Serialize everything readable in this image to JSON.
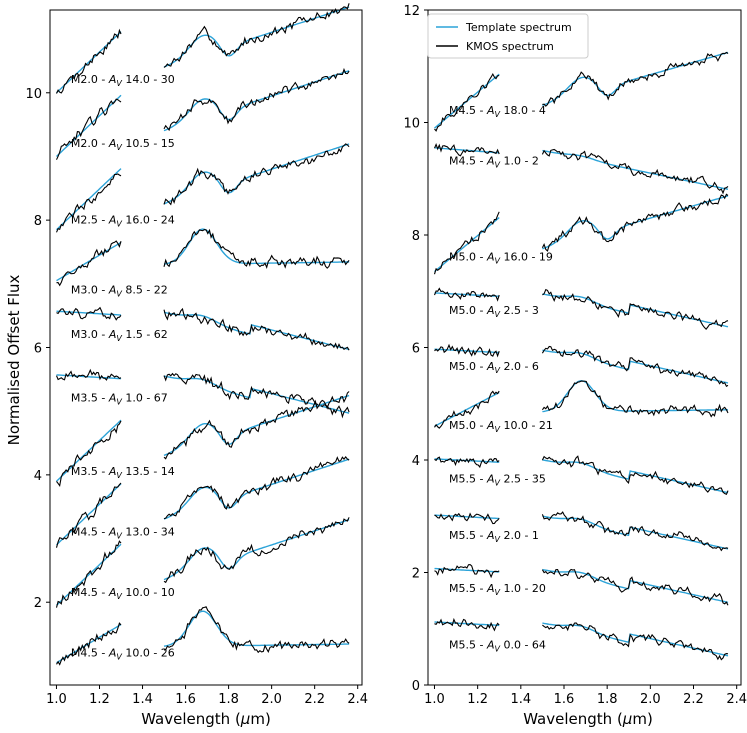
{
  "chart_data": [
    {
      "type": "line",
      "panel": "left",
      "xlabel": "Wavelength (μm)",
      "ylabel": "Normalised Offset Flux",
      "xlim": [
        0.97,
        2.42
      ],
      "ylim": [
        0.7,
        11.3
      ],
      "xticks": [
        "1.0",
        "1.2",
        "1.4",
        "1.6",
        "1.8",
        "2.0",
        "2.2",
        "2.4"
      ],
      "xtick_values": [
        1.0,
        1.2,
        1.4,
        1.6,
        1.8,
        2.0,
        2.2,
        2.4
      ],
      "yticks": [
        "2",
        "4",
        "6",
        "8",
        "10"
      ],
      "ytick_values": [
        2,
        4,
        6,
        8,
        10
      ],
      "series_colors": {
        "template": "#2ca3d8",
        "kmos": "#000000"
      },
      "spectra": [
        {
          "label": "M2.0 - A_V 14.0 - 30",
          "spt": "M2.0 - ",
          "av": "14.0 - 30",
          "base": 10.0,
          "shape": "red",
          "label_x": 1.16,
          "label_y": 10.15
        },
        {
          "label": "M2.0 - A_V 10.5 - 15",
          "spt": "M2.0 - ",
          "av": "10.5 - 15",
          "base": 9.0,
          "shape": "red",
          "label_x": 1.16,
          "label_y": 9.15
        },
        {
          "label": "M2.5 - A_V 16.0 - 24",
          "spt": "M2.5 - ",
          "av": "16.0 - 24",
          "base": 7.85,
          "shape": "red",
          "label_x": 1.16,
          "label_y": 7.95
        },
        {
          "label": "M3.0 - A_V 8.5 - 22",
          "spt": "M3.0 - ",
          "av": "8.5 - 22",
          "base": 7.05,
          "shape": "mid",
          "label_x": 1.16,
          "label_y": 6.85
        },
        {
          "label": "M3.0 - A_V 1.5 - 62",
          "spt": "M3.0 - ",
          "av": "1.5 - 62",
          "base": 6.55,
          "shape": "blue",
          "label_x": 1.16,
          "label_y": 6.15
        },
        {
          "label": "M3.5 - A_V 1.0 - 67",
          "spt": "M3.5 - ",
          "av": "1.0 - 67",
          "base": 5.55,
          "shape": "blue",
          "label_x": 1.16,
          "label_y": 5.15
        },
        {
          "label": "M3.5 - A_V 13.5 - 14",
          "spt": "M3.5 - ",
          "av": "13.5 - 14",
          "base": 3.9,
          "shape": "red",
          "label_x": 1.16,
          "label_y": 4.0
        },
        {
          "label": "M4.5 - A_V 13.0 - 34",
          "spt": "M4.5 - ",
          "av": "13.0 - 34",
          "base": 2.9,
          "shape": "red",
          "label_x": 1.16,
          "label_y": 3.05
        },
        {
          "label": "M4.5 - A_V 10.0 - 10",
          "spt": "M4.5 - ",
          "av": "10.0 - 10",
          "base": 1.95,
          "shape": "red",
          "label_x": 1.16,
          "label_y": 2.1
        },
        {
          "label": "M4.5 - A_V 10.0 - 26",
          "spt": "M4.5 - ",
          "av": "10.0 - 26",
          "base": 1.05,
          "shape": "mid",
          "label_x": 1.16,
          "label_y": 1.15
        }
      ]
    },
    {
      "type": "line",
      "panel": "right",
      "xlabel": "Wavelength (μm)",
      "ylabel": "",
      "xlim": [
        0.97,
        2.42
      ],
      "ylim": [
        0,
        12
      ],
      "xticks": [
        "1.0",
        "1.2",
        "1.4",
        "1.6",
        "1.8",
        "2.0",
        "2.2",
        "2.4"
      ],
      "xtick_values": [
        1.0,
        1.2,
        1.4,
        1.6,
        1.8,
        2.0,
        2.2,
        2.4
      ],
      "yticks": [
        "0",
        "2",
        "4",
        "6",
        "8",
        "10",
        "12"
      ],
      "ytick_values": [
        0,
        2,
        4,
        6,
        8,
        10,
        12
      ],
      "legend": {
        "position": "top-left",
        "template": "Template spectrum",
        "kmos": "KMOS spectrum"
      },
      "series_colors": {
        "template": "#2ca3d8",
        "kmos": "#000000"
      },
      "spectra": [
        {
          "label": "M4.5 - A_V 18.0 - 4",
          "spt": "M4.5 - ",
          "av": "18.0 - 4",
          "base": 9.9,
          "shape": "red",
          "label_x": 1.16,
          "label_y": 10.15
        },
        {
          "label": "M4.5 - A_V 1.0 - 2",
          "spt": "M4.5 - ",
          "av": "1.0 - 2",
          "base": 9.5,
          "shape": "flatblue",
          "label_x": 1.16,
          "label_y": 9.25
        },
        {
          "label": "M5.0 - A_V 16.0 - 19",
          "spt": "M5.0 - ",
          "av": "16.0 - 19",
          "base": 7.35,
          "shape": "red",
          "label_x": 1.16,
          "label_y": 7.55
        },
        {
          "label": "M5.0 - A_V 2.5 - 3",
          "spt": "M5.0 - ",
          "av": "2.5 - 3",
          "base": 6.95,
          "shape": "blue",
          "label_x": 1.16,
          "label_y": 6.6
        },
        {
          "label": "M5.0 - A_V 2.0 - 6",
          "spt": "M5.0 - ",
          "av": "2.0 - 6",
          "base": 5.95,
          "shape": "blue",
          "label_x": 1.16,
          "label_y": 5.6
        },
        {
          "label": "M5.0 - A_V 10.0 - 21",
          "spt": "M5.0 - ",
          "av": "10.0 - 21",
          "base": 4.6,
          "shape": "mid",
          "label_x": 1.16,
          "label_y": 4.55
        },
        {
          "label": "M5.5 - A_V 2.5 - 35",
          "spt": "M5.5 - ",
          "av": "2.5 - 35",
          "base": 4.0,
          "shape": "blue",
          "label_x": 1.16,
          "label_y": 3.6
        },
        {
          "label": "M5.5 - A_V 2.0 - 1",
          "spt": "M5.5 - ",
          "av": "2.0 - 1",
          "base": 3.0,
          "shape": "blue",
          "label_x": 1.16,
          "label_y": 2.6
        },
        {
          "label": "M5.5 - A_V 1.0 - 20",
          "spt": "M5.5 - ",
          "av": "1.0 - 20",
          "base": 2.05,
          "shape": "blue",
          "label_x": 1.16,
          "label_y": 1.65
        },
        {
          "label": "M5.5 - A_V 0.0 - 64",
          "spt": "M5.5 - ",
          "av": "0.0 - 64",
          "base": 1.1,
          "shape": "blue",
          "label_x": 1.16,
          "label_y": 0.65
        }
      ]
    }
  ]
}
